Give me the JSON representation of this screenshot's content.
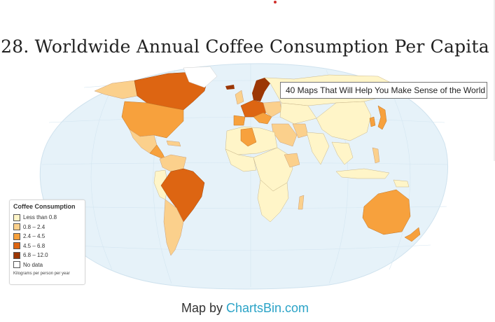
{
  "title": "28. Worldwide Annual Coffee Consumption Per Capita",
  "tooltip": "40 Maps That Will Help You Make Sense of the World",
  "legend": {
    "title": "Coffee Consumption",
    "items": [
      {
        "label": "Less than 0.8",
        "color": "#fff5c8"
      },
      {
        "label": "0.8 – 2.4",
        "color": "#fbd08c"
      },
      {
        "label": "2.4 – 4.5",
        "color": "#f7a13d"
      },
      {
        "label": "4.5 – 6.8",
        "color": "#dd6512"
      },
      {
        "label": "6.8 – 12.0",
        "color": "#9b3604"
      },
      {
        "label": "No data",
        "color": "#ffffff"
      }
    ],
    "note": "Kilograms per person per year"
  },
  "credit": {
    "prefix": "Map by",
    "link": "ChartsBin.com"
  },
  "colors": {
    "ocean": "#e6f2f9",
    "lt08": "#fff5c8",
    "r08_24": "#fbd08c",
    "r24_45": "#f7a13d",
    "r45_68": "#dd6512",
    "r68_12": "#9b3604"
  }
}
